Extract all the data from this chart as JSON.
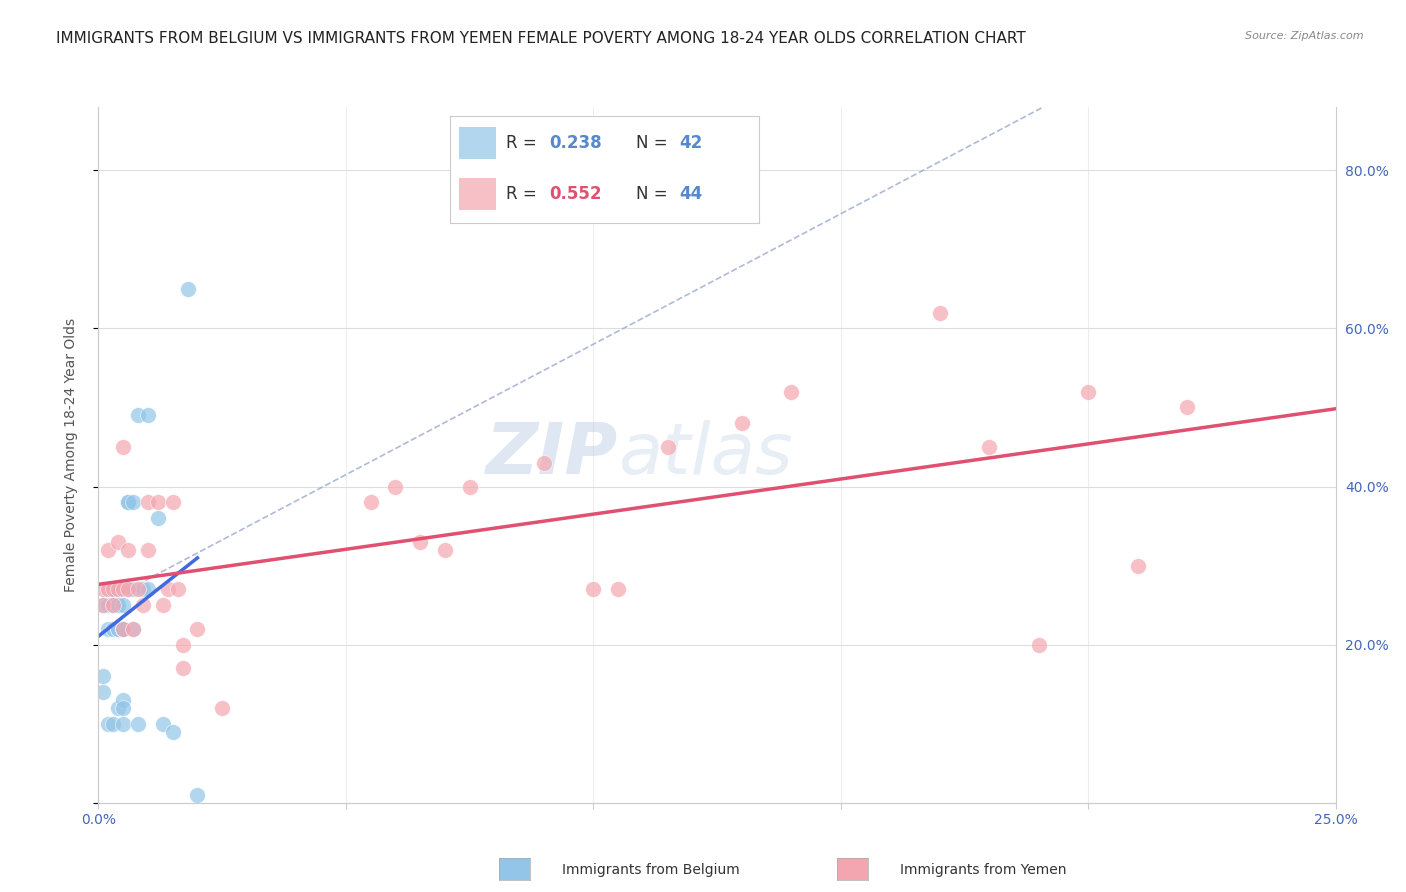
{
  "title": "IMMIGRANTS FROM BELGIUM VS IMMIGRANTS FROM YEMEN FEMALE POVERTY AMONG 18-24 YEAR OLDS CORRELATION CHART",
  "source": "Source: ZipAtlas.com",
  "ylabel": "Female Poverty Among 18-24 Year Olds",
  "xlim": [
    0.0,
    0.25
  ],
  "ylim": [
    0.0,
    0.88
  ],
  "xtick_positions": [
    0.0,
    0.05,
    0.1,
    0.15,
    0.2,
    0.25
  ],
  "xtick_labels": [
    "0.0%",
    "",
    "",
    "",
    "",
    "25.0%"
  ],
  "ytick_positions": [
    0.0,
    0.2,
    0.4,
    0.6,
    0.8
  ],
  "ytick_labels_right": [
    "",
    "20.0%",
    "40.0%",
    "60.0%",
    "80.0%"
  ],
  "background_color": "#ffffff",
  "grid_color": "#dddddd",
  "watermark_zip": "ZIP",
  "watermark_atlas": "atlas",
  "legend_label_belgium": "Immigrants from Belgium",
  "legend_label_yemen": "Immigrants from Yemen",
  "belgium_color": "#92c5e8",
  "yemen_color": "#f4a6b0",
  "belgium_line_color": "#4169e1",
  "yemen_line_color": "#e05070",
  "ref_line_color": "#99aacc",
  "r_color_belgium": "#5588cc",
  "n_color_belgium": "#5588cc",
  "r_color_yemen": "#e05070",
  "n_color_yemen": "#5588cc",
  "belgium_x": [
    0.001,
    0.001,
    0.001,
    0.002,
    0.002,
    0.002,
    0.002,
    0.003,
    0.003,
    0.003,
    0.003,
    0.003,
    0.004,
    0.004,
    0.004,
    0.004,
    0.004,
    0.004,
    0.004,
    0.005,
    0.005,
    0.005,
    0.005,
    0.005,
    0.005,
    0.005,
    0.006,
    0.006,
    0.006,
    0.007,
    0.007,
    0.007,
    0.008,
    0.008,
    0.009,
    0.01,
    0.01,
    0.012,
    0.013,
    0.015,
    0.018,
    0.02
  ],
  "belgium_y": [
    0.14,
    0.16,
    0.25,
    0.22,
    0.25,
    0.27,
    0.1,
    0.25,
    0.27,
    0.27,
    0.22,
    0.1,
    0.25,
    0.27,
    0.27,
    0.22,
    0.25,
    0.22,
    0.12,
    0.25,
    0.22,
    0.1,
    0.22,
    0.13,
    0.12,
    0.22,
    0.27,
    0.38,
    0.38,
    0.27,
    0.22,
    0.38,
    0.49,
    0.1,
    0.27,
    0.49,
    0.27,
    0.36,
    0.1,
    0.09,
    0.65,
    0.01
  ],
  "yemen_x": [
    0.001,
    0.001,
    0.002,
    0.002,
    0.003,
    0.003,
    0.004,
    0.004,
    0.005,
    0.005,
    0.005,
    0.006,
    0.006,
    0.007,
    0.008,
    0.009,
    0.01,
    0.01,
    0.012,
    0.013,
    0.014,
    0.015,
    0.016,
    0.017,
    0.017,
    0.02,
    0.025,
    0.055,
    0.06,
    0.065,
    0.07,
    0.075,
    0.09,
    0.1,
    0.105,
    0.115,
    0.13,
    0.14,
    0.17,
    0.18,
    0.19,
    0.2,
    0.21,
    0.22
  ],
  "yemen_y": [
    0.25,
    0.27,
    0.32,
    0.27,
    0.27,
    0.25,
    0.27,
    0.33,
    0.22,
    0.27,
    0.45,
    0.27,
    0.32,
    0.22,
    0.27,
    0.25,
    0.32,
    0.38,
    0.38,
    0.25,
    0.27,
    0.38,
    0.27,
    0.2,
    0.17,
    0.22,
    0.12,
    0.38,
    0.4,
    0.33,
    0.32,
    0.4,
    0.43,
    0.27,
    0.27,
    0.45,
    0.48,
    0.52,
    0.62,
    0.45,
    0.2,
    0.52,
    0.3,
    0.5
  ],
  "title_fontsize": 11,
  "axis_label_fontsize": 10,
  "tick_fontsize": 10,
  "legend_fontsize": 12
}
